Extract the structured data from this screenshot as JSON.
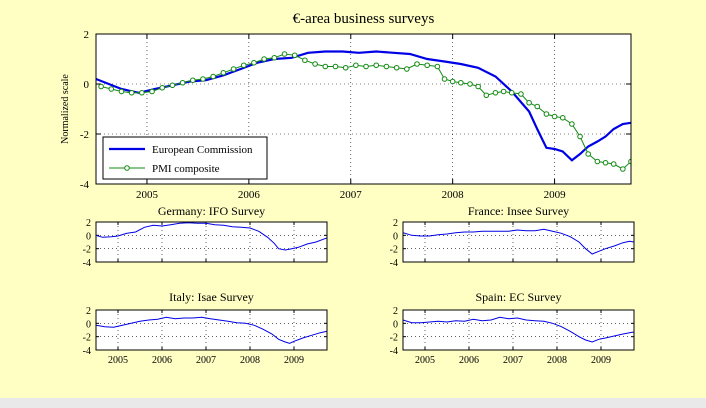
{
  "colors": {
    "background": "#ffffc4",
    "ec_line": "#0000e6",
    "pmi_line": "#138a13",
    "pmi_marker_face": "#ffffff"
  },
  "chart_data": [
    {
      "type": "line",
      "title": "€-area business surveys",
      "ylabel": "Normalized scale",
      "xlim": [
        2004.5,
        2009.75
      ],
      "ylim": [
        -4,
        2
      ],
      "xticks": [
        2005,
        2006,
        2007,
        2008,
        2009
      ],
      "xtick_labels": [
        "2005",
        "2006",
        "2007",
        "2008",
        "2009"
      ],
      "yticks": [
        -4,
        -2,
        0,
        2
      ],
      "ytick_labels": [
        "-4",
        "-2",
        "0",
        "2"
      ],
      "grid": true,
      "legend_position": "bottom-left",
      "series": [
        {
          "name": "European Commission",
          "color": "#0000e6",
          "points": [
            [
              2004.5,
              0.2
            ],
            [
              2004.75,
              -0.2
            ],
            [
              2004.92,
              -0.35
            ],
            [
              2005.08,
              -0.2
            ],
            [
              2005.25,
              -0.05
            ],
            [
              2005.42,
              0.1
            ],
            [
              2005.58,
              0.15
            ],
            [
              2005.75,
              0.35
            ],
            [
              2005.92,
              0.6
            ],
            [
              2006.08,
              0.85
            ],
            [
              2006.25,
              1.0
            ],
            [
              2006.42,
              1.05
            ],
            [
              2006.58,
              1.25
            ],
            [
              2006.75,
              1.3
            ],
            [
              2006.92,
              1.3
            ],
            [
              2007.08,
              1.25
            ],
            [
              2007.25,
              1.3
            ],
            [
              2007.42,
              1.25
            ],
            [
              2007.58,
              1.2
            ],
            [
              2007.75,
              1.0
            ],
            [
              2007.92,
              0.9
            ],
            [
              2008.08,
              0.8
            ],
            [
              2008.25,
              0.65
            ],
            [
              2008.42,
              0.3
            ],
            [
              2008.58,
              -0.3
            ],
            [
              2008.75,
              -1.1
            ],
            [
              2008.83,
              -1.8
            ],
            [
              2008.92,
              -2.55
            ],
            [
              2009.0,
              -2.6
            ],
            [
              2009.08,
              -2.7
            ],
            [
              2009.17,
              -3.05
            ],
            [
              2009.25,
              -2.8
            ],
            [
              2009.33,
              -2.5
            ],
            [
              2009.42,
              -2.3
            ],
            [
              2009.5,
              -2.1
            ],
            [
              2009.58,
              -1.8
            ],
            [
              2009.67,
              -1.6
            ],
            [
              2009.75,
              -1.55
            ],
            [
              2009.83,
              -1.35
            ],
            [
              2009.9,
              -1.25
            ]
          ]
        },
        {
          "name": "PMI composite",
          "color": "#138a13",
          "points": [
            [
              2004.55,
              -0.1
            ],
            [
              2004.65,
              -0.2
            ],
            [
              2004.75,
              -0.3
            ],
            [
              2004.85,
              -0.35
            ],
            [
              2004.95,
              -0.35
            ],
            [
              2005.05,
              -0.3
            ],
            [
              2005.15,
              -0.15
            ],
            [
              2005.25,
              -0.05
            ],
            [
              2005.35,
              0.05
            ],
            [
              2005.45,
              0.15
            ],
            [
              2005.55,
              0.2
            ],
            [
              2005.65,
              0.3
            ],
            [
              2005.75,
              0.45
            ],
            [
              2005.85,
              0.6
            ],
            [
              2005.95,
              0.75
            ],
            [
              2006.05,
              0.85
            ],
            [
              2006.15,
              1.0
            ],
            [
              2006.25,
              1.05
            ],
            [
              2006.35,
              1.2
            ],
            [
              2006.45,
              1.15
            ],
            [
              2006.55,
              0.95
            ],
            [
              2006.65,
              0.8
            ],
            [
              2006.75,
              0.7
            ],
            [
              2006.85,
              0.7
            ],
            [
              2006.95,
              0.65
            ],
            [
              2007.05,
              0.75
            ],
            [
              2007.15,
              0.7
            ],
            [
              2007.25,
              0.75
            ],
            [
              2007.35,
              0.7
            ],
            [
              2007.45,
              0.65
            ],
            [
              2007.55,
              0.6
            ],
            [
              2007.65,
              0.8
            ],
            [
              2007.75,
              0.75
            ],
            [
              2007.85,
              0.7
            ],
            [
              2007.92,
              0.2
            ],
            [
              2008.0,
              0.1
            ],
            [
              2008.08,
              0.05
            ],
            [
              2008.17,
              0.0
            ],
            [
              2008.25,
              -0.1
            ],
            [
              2008.33,
              -0.45
            ],
            [
              2008.42,
              -0.35
            ],
            [
              2008.5,
              -0.3
            ],
            [
              2008.58,
              -0.35
            ],
            [
              2008.67,
              -0.4
            ],
            [
              2008.75,
              -0.75
            ],
            [
              2008.83,
              -0.9
            ],
            [
              2008.92,
              -1.2
            ],
            [
              2009.0,
              -1.3
            ],
            [
              2009.08,
              -1.35
            ],
            [
              2009.17,
              -1.6
            ],
            [
              2009.25,
              -2.1
            ],
            [
              2009.33,
              -2.8
            ],
            [
              2009.42,
              -3.1
            ],
            [
              2009.5,
              -3.15
            ],
            [
              2009.58,
              -3.2
            ],
            [
              2009.67,
              -3.4
            ],
            [
              2009.75,
              -3.1
            ],
            [
              2009.83,
              -2.5
            ],
            [
              2009.92,
              -2.0
            ]
          ]
        }
      ]
    },
    {
      "type": "line",
      "title": "Germany: IFO Survey",
      "ylim": [
        -4,
        2
      ],
      "xlim": [
        2004.5,
        2009.75
      ],
      "yticks": [
        -4,
        -2,
        0,
        2
      ],
      "ytick_labels": [
        "-4",
        "-2",
        "0",
        "2"
      ],
      "grid": true,
      "series": [
        {
          "color": "#0000e6",
          "points": [
            [
              2004.5,
              0.0
            ],
            [
              2004.65,
              -0.3
            ],
            [
              2004.85,
              -0.2
            ],
            [
              2005.0,
              -0.1
            ],
            [
              2005.2,
              0.3
            ],
            [
              2005.4,
              0.5
            ],
            [
              2005.6,
              1.2
            ],
            [
              2005.8,
              1.5
            ],
            [
              2006.0,
              1.4
            ],
            [
              2006.2,
              1.6
            ],
            [
              2006.4,
              1.8
            ],
            [
              2006.6,
              1.9
            ],
            [
              2006.8,
              1.8
            ],
            [
              2007.0,
              1.8
            ],
            [
              2007.2,
              1.6
            ],
            [
              2007.4,
              1.5
            ],
            [
              2007.6,
              1.3
            ],
            [
              2007.8,
              1.2
            ],
            [
              2008.0,
              1.1
            ],
            [
              2008.2,
              0.6
            ],
            [
              2008.4,
              -0.3
            ],
            [
              2008.55,
              -1.2
            ],
            [
              2008.65,
              -2.0
            ],
            [
              2008.8,
              -2.2
            ],
            [
              2008.95,
              -2.0
            ],
            [
              2009.1,
              -1.8
            ],
            [
              2009.3,
              -1.3
            ],
            [
              2009.5,
              -1.0
            ],
            [
              2009.7,
              -0.5
            ],
            [
              2009.75,
              -0.4
            ]
          ]
        }
      ]
    },
    {
      "type": "line",
      "title": "France: Insee Survey",
      "ylim": [
        -4,
        2
      ],
      "xlim": [
        2004.5,
        2009.75
      ],
      "yticks": [
        -4,
        -2,
        0,
        2
      ],
      "ytick_labels": [
        "-4",
        "-2",
        "0",
        "2"
      ],
      "grid": true,
      "series": [
        {
          "color": "#0000e6",
          "points": [
            [
              2004.5,
              0.4
            ],
            [
              2004.7,
              0.0
            ],
            [
              2004.9,
              -0.1
            ],
            [
              2005.1,
              -0.1
            ],
            [
              2005.3,
              0.1
            ],
            [
              2005.5,
              0.2
            ],
            [
              2005.7,
              0.4
            ],
            [
              2005.9,
              0.5
            ],
            [
              2006.1,
              0.5
            ],
            [
              2006.3,
              0.6
            ],
            [
              2006.5,
              0.6
            ],
            [
              2006.7,
              0.6
            ],
            [
              2006.9,
              0.6
            ],
            [
              2007.1,
              0.8
            ],
            [
              2007.3,
              0.7
            ],
            [
              2007.5,
              0.7
            ],
            [
              2007.7,
              0.9
            ],
            [
              2007.9,
              0.6
            ],
            [
              2008.1,
              0.3
            ],
            [
              2008.3,
              -0.2
            ],
            [
              2008.5,
              -1.0
            ],
            [
              2008.65,
              -2.0
            ],
            [
              2008.8,
              -2.8
            ],
            [
              2008.95,
              -2.4
            ],
            [
              2009.1,
              -2.0
            ],
            [
              2009.3,
              -1.6
            ],
            [
              2009.5,
              -1.1
            ],
            [
              2009.65,
              -0.9
            ],
            [
              2009.75,
              -1.0
            ]
          ]
        }
      ]
    },
    {
      "type": "line",
      "title": "Italy: Isae Survey",
      "xlim": [
        2004.5,
        2009.75
      ],
      "ylim": [
        -4,
        2
      ],
      "xticks": [
        2005,
        2006,
        2007,
        2008,
        2009
      ],
      "xtick_labels": [
        "2005",
        "2006",
        "2007",
        "2008",
        "2009"
      ],
      "yticks": [
        -4,
        -2,
        0,
        2
      ],
      "ytick_labels": [
        "-4",
        "-2",
        "0",
        "2"
      ],
      "grid": true,
      "series": [
        {
          "color": "#0000e6",
          "points": [
            [
              2004.5,
              -0.3
            ],
            [
              2004.7,
              -0.5
            ],
            [
              2004.9,
              -0.6
            ],
            [
              2005.1,
              -0.3
            ],
            [
              2005.3,
              0.0
            ],
            [
              2005.5,
              0.3
            ],
            [
              2005.7,
              0.5
            ],
            [
              2005.9,
              0.6
            ],
            [
              2006.1,
              0.9
            ],
            [
              2006.3,
              0.7
            ],
            [
              2006.5,
              0.8
            ],
            [
              2006.7,
              0.8
            ],
            [
              2006.9,
              0.9
            ],
            [
              2007.1,
              0.7
            ],
            [
              2007.3,
              0.5
            ],
            [
              2007.5,
              0.3
            ],
            [
              2007.7,
              0.1
            ],
            [
              2007.9,
              0.0
            ],
            [
              2008.1,
              -0.3
            ],
            [
              2008.3,
              -0.9
            ],
            [
              2008.5,
              -1.6
            ],
            [
              2008.65,
              -2.4
            ],
            [
              2008.8,
              -2.8
            ],
            [
              2008.9,
              -3.0
            ],
            [
              2009.0,
              -2.7
            ],
            [
              2009.2,
              -2.2
            ],
            [
              2009.4,
              -1.8
            ],
            [
              2009.6,
              -1.4
            ],
            [
              2009.75,
              -1.2
            ]
          ]
        }
      ]
    },
    {
      "type": "line",
      "title": "Spain: EC Survey",
      "xlim": [
        2004.5,
        2009.75
      ],
      "ylim": [
        -4,
        2
      ],
      "xticks": [
        2005,
        2006,
        2007,
        2008,
        2009
      ],
      "xtick_labels": [
        "2005",
        "2006",
        "2007",
        "2008",
        "2009"
      ],
      "yticks": [
        -4,
        -2,
        0,
        2
      ],
      "ytick_labels": [
        "-4",
        "-2",
        "0",
        "2"
      ],
      "grid": true,
      "series": [
        {
          "color": "#0000e6",
          "points": [
            [
              2004.5,
              0.5
            ],
            [
              2004.7,
              0.1
            ],
            [
              2004.9,
              0.1
            ],
            [
              2005.1,
              0.2
            ],
            [
              2005.3,
              0.3
            ],
            [
              2005.5,
              0.2
            ],
            [
              2005.7,
              0.4
            ],
            [
              2005.9,
              0.3
            ],
            [
              2006.1,
              0.6
            ],
            [
              2006.3,
              0.4
            ],
            [
              2006.5,
              0.5
            ],
            [
              2006.7,
              0.9
            ],
            [
              2006.9,
              0.7
            ],
            [
              2007.1,
              0.8
            ],
            [
              2007.3,
              0.5
            ],
            [
              2007.5,
              0.4
            ],
            [
              2007.7,
              0.3
            ],
            [
              2007.9,
              0.0
            ],
            [
              2008.1,
              -0.5
            ],
            [
              2008.3,
              -1.2
            ],
            [
              2008.5,
              -2.0
            ],
            [
              2008.65,
              -2.5
            ],
            [
              2008.8,
              -2.8
            ],
            [
              2008.95,
              -2.4
            ],
            [
              2009.1,
              -2.2
            ],
            [
              2009.3,
              -1.9
            ],
            [
              2009.5,
              -1.6
            ],
            [
              2009.65,
              -1.4
            ],
            [
              2009.75,
              -1.3
            ]
          ]
        }
      ]
    }
  ]
}
